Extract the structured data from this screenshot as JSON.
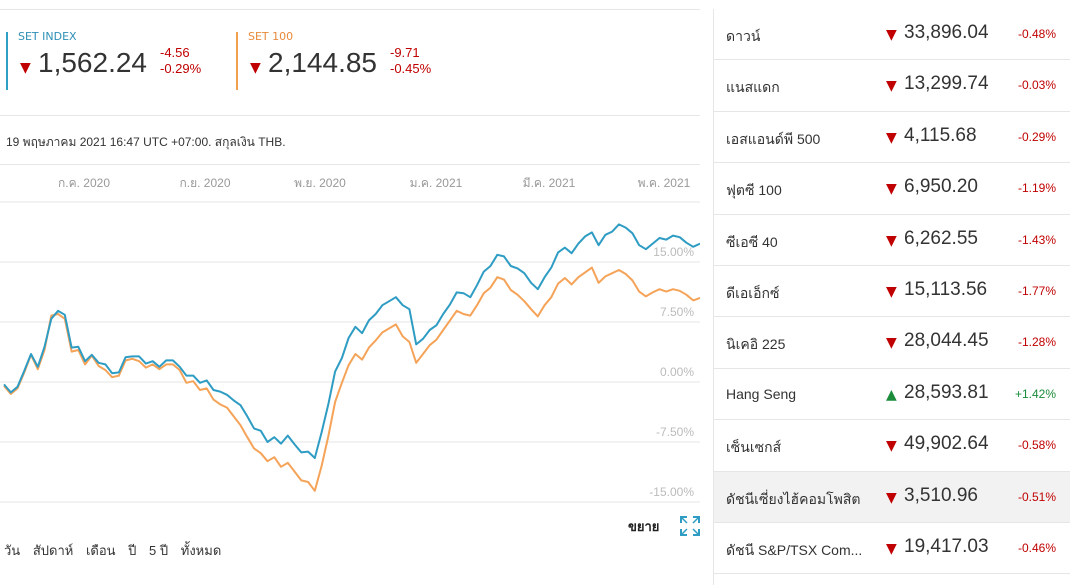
{
  "indices": [
    {
      "name": "SET INDEX",
      "value": "1,562.24",
      "change": "-4.56",
      "change_pct": "-0.29%",
      "direction": "down",
      "color": "#2ea0c4",
      "arrow": "▼"
    },
    {
      "name": "SET 100",
      "value": "2,144.85",
      "change": "-9.71",
      "change_pct": "-0.45%",
      "direction": "down",
      "color": "#f0a050",
      "arrow": "▼"
    }
  ],
  "timestamp": "19 พฤษภาคม 2021 16:47 UTC +07:00. สกุลเงิน THB.",
  "chart_data": {
    "type": "line",
    "x_ticks": [
      "ก.ค. 2020",
      "ก.ย. 2020",
      "พ.ย. 2020",
      "ม.ค. 2021",
      "มี.ค. 2021",
      "พ.ค. 2021"
    ],
    "y_ticks": [
      "15.00%",
      "7.50%",
      "0.00%",
      "-7.50%",
      "-15.00%"
    ],
    "ylim": [
      -15,
      22.5
    ],
    "grid": true,
    "series": [
      {
        "name": "SET INDEX",
        "color": "#2e9cc3",
        "values": [
          -0.3,
          -1.3,
          -0.6,
          1.4,
          3.5,
          1.9,
          4.4,
          7.9,
          8.9,
          8.4,
          4.3,
          4.4,
          2.6,
          3.4,
          2.4,
          2.2,
          1.1,
          1.2,
          3.1,
          3.2,
          3.2,
          2.3,
          2.6,
          1.9,
          2.7,
          2.7,
          1.9,
          0.8,
          0.8,
          -0.1,
          0.2,
          -1.0,
          -1.2,
          -1.6,
          -2.3,
          -2.9,
          -4.3,
          -5.8,
          -6.1,
          -7.5,
          -6.9,
          -7.7,
          -6.7,
          -7.8,
          -8.8,
          -8.7,
          -9.5,
          -6.3,
          -2.8,
          1.3,
          3.0,
          5.5,
          6.9,
          6.1,
          7.7,
          8.5,
          9.6,
          10.1,
          10.6,
          9.6,
          9.1,
          4.7,
          5.4,
          6.5,
          7.1,
          8.5,
          9.7,
          11.2,
          11.1,
          10.6,
          12.1,
          13.8,
          14.5,
          15.9,
          15.7,
          14.5,
          14.2,
          13.6,
          12.4,
          11.6,
          13.1,
          14.3,
          16.2,
          16.8,
          16.1,
          17.3,
          18.2,
          18.7,
          17.1,
          18.4,
          18.8,
          19.7,
          19.3,
          18.6,
          17.1,
          16.6,
          17.3,
          18.0,
          17.8,
          18.3,
          18.1,
          17.4,
          16.9,
          17.3
        ]
      },
      {
        "name": "SET 100",
        "color": "#f5a358",
        "values": [
          -0.5,
          -1.5,
          -0.8,
          1.2,
          3.4,
          1.6,
          4.0,
          8.3,
          8.5,
          7.9,
          3.8,
          4.0,
          2.2,
          3.3,
          2.0,
          1.5,
          0.6,
          0.8,
          2.7,
          2.9,
          2.6,
          1.8,
          2.2,
          1.6,
          2.2,
          2.2,
          1.5,
          -0.1,
          0.1,
          -1.0,
          -0.8,
          -2.2,
          -2.8,
          -3.2,
          -4.3,
          -5.4,
          -6.9,
          -8.3,
          -8.9,
          -9.9,
          -9.4,
          -10.6,
          -10.1,
          -11.2,
          -12.3,
          -12.5,
          -13.6,
          -10.5,
          -6.8,
          -2.5,
          -0.1,
          2.1,
          3.5,
          2.8,
          4.3,
          5.2,
          6.2,
          6.7,
          7.2,
          5.7,
          5.0,
          2.4,
          3.5,
          4.6,
          5.3,
          6.5,
          7.7,
          8.9,
          8.5,
          8.3,
          9.6,
          11.1,
          11.8,
          13.1,
          12.8,
          11.5,
          10.9,
          10.1,
          9.1,
          8.2,
          9.6,
          10.6,
          12.3,
          13.0,
          12.2,
          13.1,
          13.7,
          14.3,
          12.4,
          13.2,
          13.6,
          14.0,
          13.5,
          12.7,
          11.3,
          10.7,
          11.2,
          11.6,
          11.3,
          11.6,
          11.4,
          10.9,
          10.2,
          10.5
        ]
      }
    ]
  },
  "actions": {
    "expand_label": "ขยาย"
  },
  "ranges": [
    "วัน",
    "สัปดาห์",
    "เดือน",
    "ปี",
    "5 ปี",
    "ทั้งหมด"
  ],
  "markets": [
    {
      "name": "ดาวน์",
      "value": "33,896.04",
      "change": "-0.48%",
      "direction": "down",
      "arrow": "▼"
    },
    {
      "name": "แนสแดก",
      "value": "13,299.74",
      "change": "-0.03%",
      "direction": "down",
      "arrow": "▼"
    },
    {
      "name": "เอสแอนด์พี 500",
      "value": "4,115.68",
      "change": "-0.29%",
      "direction": "down",
      "arrow": "▼"
    },
    {
      "name": "ฟุตซี 100",
      "value": "6,950.20",
      "change": "-1.19%",
      "direction": "down",
      "arrow": "▼"
    },
    {
      "name": "ซีเอซี 40",
      "value": "6,262.55",
      "change": "-1.43%",
      "direction": "down",
      "arrow": "▼"
    },
    {
      "name": "ดีเอเอ็กซ์",
      "value": "15,113.56",
      "change": "-1.77%",
      "direction": "down",
      "arrow": "▼"
    },
    {
      "name": "นิเคอิ 225",
      "value": "28,044.45",
      "change": "-1.28%",
      "direction": "down",
      "arrow": "▼"
    },
    {
      "name": "Hang Seng",
      "value": "28,593.81",
      "change": "+1.42%",
      "direction": "up",
      "arrow": "▲"
    },
    {
      "name": "เซ็นเซกส์",
      "value": "49,902.64",
      "change": "-0.58%",
      "direction": "down",
      "arrow": "▼"
    },
    {
      "name": "ดัชนีเซี่ยงไฮ้คอมโพสิต",
      "value": "3,510.96",
      "change": "-0.51%",
      "direction": "down",
      "arrow": "▼",
      "highlighted": true
    },
    {
      "name": "ดัชนี S&P/TSX Com...",
      "value": "19,417.03",
      "change": "-0.46%",
      "direction": "down",
      "arrow": "▼"
    }
  ]
}
